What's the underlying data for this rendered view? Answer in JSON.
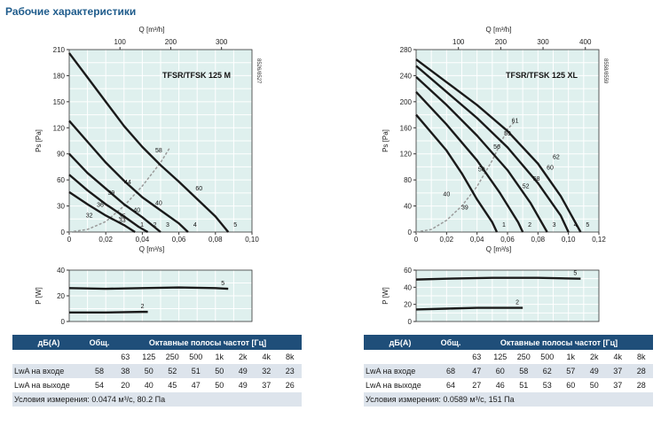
{
  "page_title": "Рабочие характеристики",
  "colors": {
    "plot_bg": "#dff0ee",
    "grid": "#ffffff",
    "curve": "#1a1a1a",
    "system": "#9a9a9a",
    "header": "#1f4e79"
  },
  "chart_data": [
    {
      "type": "line",
      "model": "TFSR/TFSK 125 M",
      "code": "8526/8527",
      "ylabel": "Ps [Pa]",
      "xlabel": "Q [m³/s]",
      "x2label": "Q [m³/h]",
      "xlim": [
        0,
        0.1
      ],
      "ylim": [
        0,
        210
      ],
      "xticks": [
        "0",
        "0,02",
        "0,04",
        "0,06",
        "0,08",
        "0,10"
      ],
      "yticks": [
        "0",
        "30",
        "60",
        "90",
        "120",
        "150",
        "180",
        "210"
      ],
      "x2ticks": [
        "100",
        "200",
        "300"
      ],
      "x2values": [
        100,
        200,
        300
      ],
      "series": [
        {
          "name": "5",
          "points": [
            [
              0,
              206
            ],
            [
              0.01,
              178
            ],
            [
              0.02,
              150
            ],
            [
              0.03,
              122
            ],
            [
              0.04,
              98
            ],
            [
              0.05,
              77
            ],
            [
              0.06,
              58
            ],
            [
              0.07,
              38
            ],
            [
              0.08,
              18
            ],
            [
              0.087,
              0
            ]
          ]
        },
        {
          "name": "4",
          "points": [
            [
              0,
              128
            ],
            [
              0.01,
              104
            ],
            [
              0.02,
              80
            ],
            [
              0.03,
              59
            ],
            [
              0.04,
              40
            ],
            [
              0.05,
              25
            ],
            [
              0.06,
              10
            ],
            [
              0.065,
              0
            ]
          ]
        },
        {
          "name": "3",
          "points": [
            [
              0,
              90
            ],
            [
              0.01,
              68
            ],
            [
              0.02,
              50
            ],
            [
              0.03,
              32
            ],
            [
              0.04,
              17
            ],
            [
              0.05,
              0
            ]
          ]
        },
        {
          "name": "2",
          "points": [
            [
              0,
              66
            ],
            [
              0.01,
              48
            ],
            [
              0.02,
              32
            ],
            [
              0.03,
              18
            ],
            [
              0.038,
              6
            ],
            [
              0.043,
              0
            ]
          ]
        },
        {
          "name": "1",
          "points": [
            [
              0,
              46
            ],
            [
              0.01,
              32
            ],
            [
              0.02,
              19
            ],
            [
              0.03,
              8
            ],
            [
              0.036,
              0
            ]
          ]
        }
      ],
      "system_curve": [
        [
          0,
          0
        ],
        [
          0.01,
          3
        ],
        [
          0.02,
          12
        ],
        [
          0.03,
          30
        ],
        [
          0.04,
          53
        ],
        [
          0.05,
          80
        ],
        [
          0.055,
          97
        ]
      ],
      "curve_labels": [
        {
          "text": "58",
          "x": 0.049,
          "y": 92
        },
        {
          "text": "60",
          "x": 0.071,
          "y": 48
        },
        {
          "text": "44",
          "x": 0.032,
          "y": 55
        },
        {
          "text": "40",
          "x": 0.049,
          "y": 31
        },
        {
          "text": "39",
          "x": 0.023,
          "y": 43
        },
        {
          "text": "40",
          "x": 0.037,
          "y": 23
        },
        {
          "text": "36",
          "x": 0.017,
          "y": 29
        },
        {
          "text": "35",
          "x": 0.029,
          "y": 16
        },
        {
          "text": "32",
          "x": 0.011,
          "y": 17
        },
        {
          "text": "33",
          "x": 0.029,
          "y": 11
        }
      ],
      "power": {
        "ylabel": "P [W]",
        "ylim": [
          0,
          40
        ],
        "yticks": [
          "0",
          "20",
          "40"
        ],
        "series": [
          {
            "name": "5",
            "points": [
              [
                0,
                26
              ],
              [
                0.02,
                25.5
              ],
              [
                0.04,
                26
              ],
              [
                0.06,
                26.5
              ],
              [
                0.08,
                26
              ],
              [
                0.087,
                25.5
              ]
            ]
          },
          {
            "name": "2",
            "points": [
              [
                0,
                7
              ],
              [
                0.02,
                7
              ],
              [
                0.04,
                7.5
              ],
              [
                0.043,
                7.5
              ]
            ]
          }
        ]
      }
    },
    {
      "type": "line",
      "model": "TFSR/TFSK 125 XL",
      "code": "8558/8559",
      "ylabel": "Ps [Pa]",
      "xlabel": "Q [m³/s]",
      "x2label": "Q [m³/h]",
      "xlim": [
        0,
        0.12
      ],
      "ylim": [
        0,
        280
      ],
      "xticks": [
        "0",
        "0,02",
        "0,04",
        "0,06",
        "0,08",
        "0,10",
        "0,12"
      ],
      "yticks": [
        "0",
        "40",
        "80",
        "120",
        "160",
        "200",
        "240",
        "280"
      ],
      "x2ticks": [
        "100",
        "200",
        "300",
        "400"
      ],
      "x2values": [
        100,
        200,
        300,
        400
      ],
      "series": [
        {
          "name": "5",
          "points": [
            [
              0,
              265
            ],
            [
              0.02,
              230
            ],
            [
              0.04,
              195
            ],
            [
              0.06,
              155
            ],
            [
              0.08,
              105
            ],
            [
              0.095,
              55
            ],
            [
              0.108,
              0
            ]
          ]
        },
        {
          "name": "4",
          "points": [
            [
              0,
              255
            ],
            [
              0.02,
              215
            ],
            [
              0.04,
              175
            ],
            [
              0.06,
              130
            ],
            [
              0.08,
              75
            ],
            [
              0.095,
              25
            ],
            [
              0.1,
              0
            ]
          ]
        },
        {
          "name": "3",
          "points": [
            [
              0,
              238
            ],
            [
              0.02,
              195
            ],
            [
              0.04,
              148
            ],
            [
              0.06,
              95
            ],
            [
              0.075,
              45
            ],
            [
              0.086,
              0
            ]
          ]
        },
        {
          "name": "2",
          "points": [
            [
              0,
              215
            ],
            [
              0.02,
              165
            ],
            [
              0.04,
              110
            ],
            [
              0.055,
              60
            ],
            [
              0.067,
              15
            ],
            [
              0.07,
              0
            ]
          ]
        },
        {
          "name": "1",
          "points": [
            [
              0,
              180
            ],
            [
              0.02,
              125
            ],
            [
              0.03,
              90
            ],
            [
              0.04,
              50
            ],
            [
              0.05,
              15
            ],
            [
              0.053,
              0
            ]
          ]
        }
      ],
      "system_curve": [
        [
          0,
          0
        ],
        [
          0.01,
          4
        ],
        [
          0.02,
          18
        ],
        [
          0.03,
          40
        ],
        [
          0.04,
          70
        ],
        [
          0.05,
          110
        ],
        [
          0.06,
          158
        ],
        [
          0.065,
          170
        ]
      ],
      "curve_labels": [
        {
          "text": "61",
          "x": 0.065,
          "y": 168
        },
        {
          "text": "62",
          "x": 0.092,
          "y": 112
        },
        {
          "text": "59",
          "x": 0.06,
          "y": 148
        },
        {
          "text": "60",
          "x": 0.088,
          "y": 96
        },
        {
          "text": "56",
          "x": 0.053,
          "y": 128
        },
        {
          "text": "58",
          "x": 0.079,
          "y": 79
        },
        {
          "text": "50",
          "x": 0.043,
          "y": 93
        },
        {
          "text": "52",
          "x": 0.072,
          "y": 67
        },
        {
          "text": "40",
          "x": 0.02,
          "y": 55
        },
        {
          "text": "39",
          "x": 0.032,
          "y": 35
        }
      ],
      "power": {
        "ylabel": "P [W]",
        "ylim": [
          0,
          60
        ],
        "yticks": [
          "0",
          "20",
          "40",
          "60"
        ],
        "series": [
          {
            "name": "5",
            "points": [
              [
                0,
                49
              ],
              [
                0.02,
                50
              ],
              [
                0.05,
                51
              ],
              [
                0.08,
                51
              ],
              [
                0.108,
                50
              ]
            ]
          },
          {
            "name": "2",
            "points": [
              [
                0,
                14
              ],
              [
                0.02,
                15
              ],
              [
                0.04,
                16
              ],
              [
                0.06,
                16
              ],
              [
                0.07,
                16
              ]
            ]
          }
        ]
      }
    }
  ],
  "tables": [
    {
      "h_db": "дБ(A)",
      "h_total": "Общ.",
      "h_bands": "Октавные полосы частот [Гц]",
      "bands": [
        "63",
        "125",
        "250",
        "500",
        "1k",
        "2k",
        "4k",
        "8k"
      ],
      "rows": [
        {
          "label": "LwA на входе",
          "total": "58",
          "values": [
            "38",
            "50",
            "52",
            "51",
            "50",
            "49",
            "32",
            "23"
          ]
        },
        {
          "label": "LwA на выходе",
          "total": "54",
          "values": [
            "20",
            "40",
            "45",
            "47",
            "50",
            "49",
            "37",
            "26"
          ]
        }
      ],
      "conditions": "Условия измерения: 0.0474 м³/с, 80.2 Па"
    },
    {
      "h_db": "дБ(A)",
      "h_total": "Общ.",
      "h_bands": "Октавные полосы частот [Гц]",
      "bands": [
        "63",
        "125",
        "250",
        "500",
        "1k",
        "2k",
        "4k",
        "8k"
      ],
      "rows": [
        {
          "label": "LwA на входе",
          "total": "68",
          "values": [
            "47",
            "60",
            "58",
            "62",
            "57",
            "49",
            "37",
            "28"
          ]
        },
        {
          "label": "LwA на выходе",
          "total": "64",
          "values": [
            "27",
            "46",
            "51",
            "53",
            "60",
            "50",
            "37",
            "28"
          ]
        }
      ],
      "conditions": "Условия измерения: 0.0589 м³/с, 151 Па"
    }
  ]
}
